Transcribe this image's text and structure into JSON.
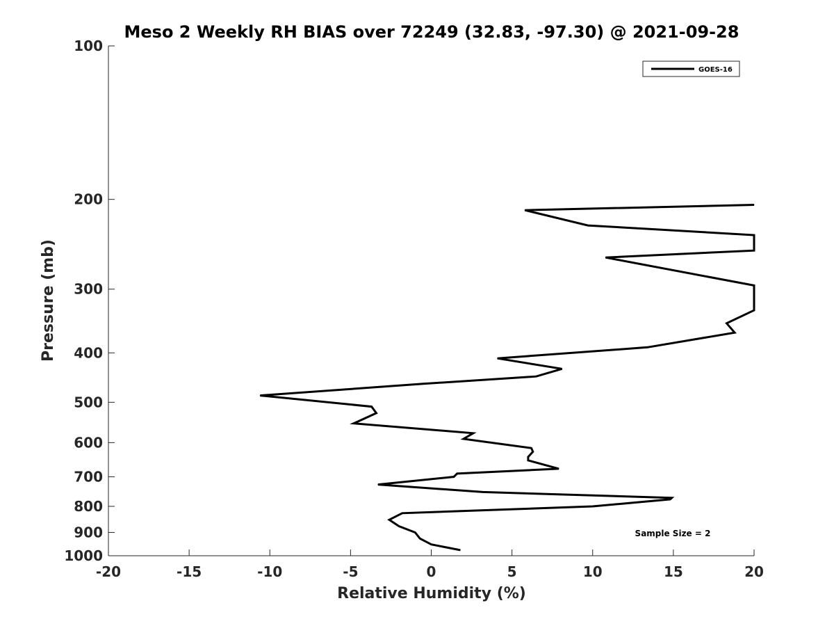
{
  "chart_data": {
    "type": "line",
    "title": "Meso 2 Weekly RH BIAS over 72249 (32.83, -97.30) @ 2021-09-28",
    "xlabel": "Relative Humidity (%)",
    "ylabel": "Pressure (mb)",
    "xlim": [
      -20,
      20
    ],
    "ylim": [
      100,
      1000
    ],
    "y_scale": "log",
    "y_reversed": true,
    "x_ticks": [
      "-20",
      "-15",
      "-10",
      "-5",
      "0",
      "5",
      "10",
      "15",
      "20"
    ],
    "y_ticks": [
      "100",
      "200",
      "300",
      "400",
      "500",
      "600",
      "700",
      "800",
      "900",
      "1000"
    ],
    "grid": false,
    "legend_position": "top-right",
    "annotation": "Sample Size = 2",
    "series": [
      {
        "name": "GOES-16",
        "color": "#000000",
        "points": [
          {
            "x": 1.8,
            "y": 975
          },
          {
            "x": 0.0,
            "y": 950
          },
          {
            "x": -0.7,
            "y": 925
          },
          {
            "x": -1.0,
            "y": 900
          },
          {
            "x": -2.0,
            "y": 875
          },
          {
            "x": -2.6,
            "y": 850
          },
          {
            "x": -1.8,
            "y": 825
          },
          {
            "x": 10.0,
            "y": 800
          },
          {
            "x": 14.8,
            "y": 775
          },
          {
            "x": 14.9,
            "y": 770
          },
          {
            "x": 3.2,
            "y": 750
          },
          {
            "x": -3.3,
            "y": 725
          },
          {
            "x": 1.4,
            "y": 700
          },
          {
            "x": 1.6,
            "y": 690
          },
          {
            "x": 7.9,
            "y": 675
          },
          {
            "x": 6.0,
            "y": 650
          },
          {
            "x": 6.0,
            "y": 640
          },
          {
            "x": 6.3,
            "y": 625
          },
          {
            "x": 6.2,
            "y": 615
          },
          {
            "x": 2.0,
            "y": 590
          },
          {
            "x": 2.6,
            "y": 575
          },
          {
            "x": -4.8,
            "y": 550
          },
          {
            "x": -3.4,
            "y": 525
          },
          {
            "x": -3.7,
            "y": 510
          },
          {
            "x": -10.6,
            "y": 485
          },
          {
            "x": -0.5,
            "y": 460
          },
          {
            "x": 6.5,
            "y": 445
          },
          {
            "x": 8.1,
            "y": 430
          },
          {
            "x": 4.1,
            "y": 410
          },
          {
            "x": 13.4,
            "y": 390
          },
          {
            "x": 18.8,
            "y": 365
          },
          {
            "x": 18.3,
            "y": 350
          },
          {
            "x": 20.0,
            "y": 330
          },
          {
            "x": 20.0,
            "y": 295
          },
          {
            "x": 10.8,
            "y": 260
          },
          {
            "x": 20.0,
            "y": 252
          },
          {
            "x": 20.0,
            "y": 235
          },
          {
            "x": 9.7,
            "y": 225
          },
          {
            "x": 5.8,
            "y": 210
          },
          {
            "x": 20.0,
            "y": 205
          }
        ]
      }
    ]
  }
}
